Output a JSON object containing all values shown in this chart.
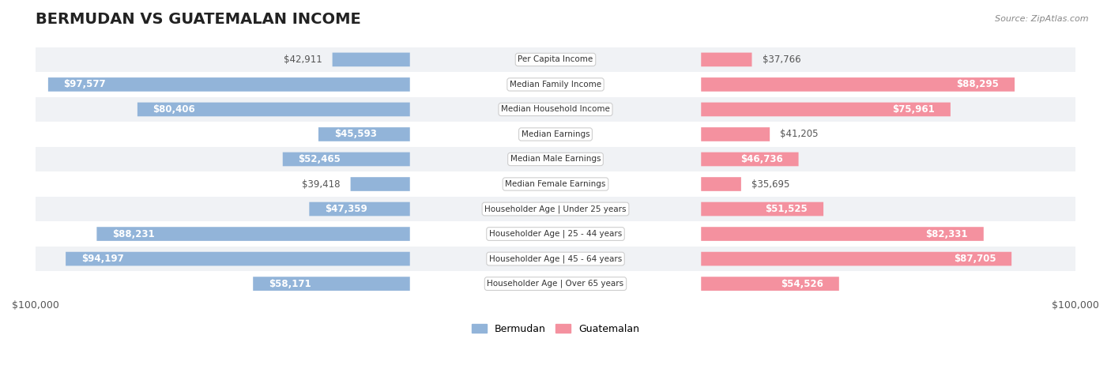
{
  "title": "BERMUDAN VS GUATEMALAN INCOME",
  "source": "Source: ZipAtlas.com",
  "categories": [
    "Per Capita Income",
    "Median Family Income",
    "Median Household Income",
    "Median Earnings",
    "Median Male Earnings",
    "Median Female Earnings",
    "Householder Age | Under 25 years",
    "Householder Age | 25 - 44 years",
    "Householder Age | 45 - 64 years",
    "Householder Age | Over 65 years"
  ],
  "bermudan_values": [
    42911,
    97577,
    80406,
    45593,
    52465,
    39418,
    47359,
    88231,
    94197,
    58171
  ],
  "guatemalan_values": [
    37766,
    88295,
    75961,
    41205,
    46736,
    35695,
    51525,
    82331,
    87705,
    54526
  ],
  "bermudan_color": "#92b4d9",
  "guatemalan_color": "#f4919f",
  "bermudan_color_dark": "#5a8fc4",
  "guatemalan_color_dark": "#ef5a72",
  "bar_bg_color": "#e8ecf0",
  "row_bg_even": "#f0f2f5",
  "row_bg_odd": "#ffffff",
  "max_value": 100000,
  "xlabel_left": "$100,000",
  "xlabel_right": "$100,000",
  "legend_bermudan": "Bermudan",
  "legend_guatemalan": "Guatemalan",
  "title_fontsize": 14,
  "label_fontsize": 9,
  "value_fontsize": 8.5
}
